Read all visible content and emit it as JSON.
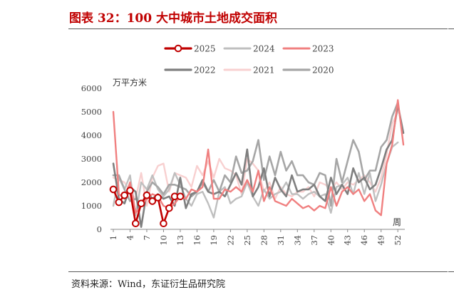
{
  "header": {
    "title": "图表 32：100 大中城市土地成交面积"
  },
  "footer": {
    "source": "资料来源：Wind，东证衍生品研究院"
  },
  "chart_data": {
    "type": "line",
    "unit_label": "万平方米",
    "x_axis_unit": "周",
    "ylim": [
      0,
      6000
    ],
    "yticks": [
      0,
      1000,
      2000,
      3000,
      4000,
      5000,
      6000
    ],
    "xlim": [
      1,
      53
    ],
    "xticks": [
      1,
      4,
      7,
      10,
      13,
      16,
      19,
      22,
      25,
      28,
      31,
      34,
      37,
      40,
      43,
      46,
      49,
      52
    ],
    "legend_position": "top",
    "series": [
      {
        "name": "2025",
        "color": "#c00000",
        "width": 2.6,
        "markers": true,
        "values": [
          1700,
          1150,
          1450,
          1650,
          250,
          1100,
          1450,
          1200,
          1350,
          250,
          900,
          1400,
          1400
        ]
      },
      {
        "name": "2024",
        "color": "#bfbfbf",
        "width": 2.4,
        "values": [
          1000,
          2200,
          1700,
          2300,
          600,
          2000,
          1700,
          2300,
          1700,
          1400,
          1700,
          2400,
          1900,
          1300,
          1000,
          1500,
          1600,
          1100,
          500,
          1600,
          1800,
          1100,
          1300,
          1400,
          2000,
          1400,
          1000,
          1700,
          1300,
          1500,
          1600,
          2000,
          1500,
          1500,
          1300,
          1500,
          1600,
          1400,
          1500,
          700,
          1800,
          1900,
          2200,
          1500,
          2400,
          1500,
          2400,
          1200,
          1900,
          2800,
          3500,
          3700
        ]
      },
      {
        "name": "2023",
        "color": "#f08080",
        "width": 2.4,
        "values": [
          5000,
          1500,
          1300,
          2000,
          700,
          1000,
          1300,
          1500,
          1400,
          1000,
          900,
          1100,
          1400,
          1300,
          1700,
          1600,
          1800,
          3400,
          1300,
          1300,
          1700,
          1600,
          1800,
          1600,
          2100,
          1600,
          2500,
          1200,
          1800,
          1200,
          1100,
          1000,
          1300,
          1100,
          900,
          1000,
          800,
          1000,
          900,
          1800,
          1000,
          1600,
          1800,
          1500,
          1700,
          1200,
          1500,
          800,
          600,
          2800,
          3600,
          5500,
          3600
        ]
      },
      {
        "name": "2022",
        "color": "#7f7f7f",
        "width": 2.6,
        "values": [
          2800,
          1300,
          1100,
          1800,
          1600,
          100,
          1600,
          1300,
          1500,
          1300,
          1400,
          1000,
          2200,
          900,
          1500,
          1600,
          2100,
          1600,
          1500,
          1600,
          1400,
          1900,
          2400,
          1900,
          3400,
          1400,
          1800,
          2600,
          1400,
          2200,
          1700,
          1400,
          2300,
          1600,
          1700,
          1700,
          1900,
          1400,
          1200,
          2200,
          1500,
          1900,
          1500,
          2600,
          2000,
          2200,
          1700,
          1900,
          2600,
          3400,
          3800,
          5300,
          4100
        ]
      },
      {
        "name": "2021",
        "color": "#f8d0d0",
        "width": 2.4,
        "values": [
          2200,
          2100,
          2000,
          1600,
          1300,
          2400,
          1000,
          2200,
          2700,
          2800,
          1600,
          2400,
          2300,
          2200,
          1800,
          2700,
          2300,
          2900,
          2200,
          3000,
          2600,
          2500,
          2300,
          1500,
          3000,
          2800,
          2500,
          1600,
          2000,
          1300,
          1800,
          1500,
          1400,
          1600,
          1600,
          1800,
          1400,
          2000,
          1900,
          1700,
          2000,
          1700,
          2000,
          1900,
          2100,
          2300,
          2000,
          1600,
          2200,
          3200,
          4500,
          5000
        ]
      },
      {
        "name": "2020",
        "color": "#a6a6a6",
        "width": 2.6,
        "values": [
          2300,
          2300,
          1700,
          1200,
          1300,
          1000,
          1600,
          2000,
          1800,
          1500,
          1900,
          1900,
          1800,
          1700,
          1400,
          1600,
          2000,
          1600,
          2100,
          1600,
          2300,
          2000,
          3100,
          2400,
          2500,
          2900,
          3800,
          2100,
          3100,
          2300,
          3300,
          2500,
          2900,
          2300,
          2300,
          2000,
          1900,
          2400,
          2300,
          1000,
          3000,
          2000,
          2900,
          3800,
          3300,
          2100,
          2500,
          2500,
          3500,
          3800,
          4800,
          5400
        ]
      }
    ]
  }
}
